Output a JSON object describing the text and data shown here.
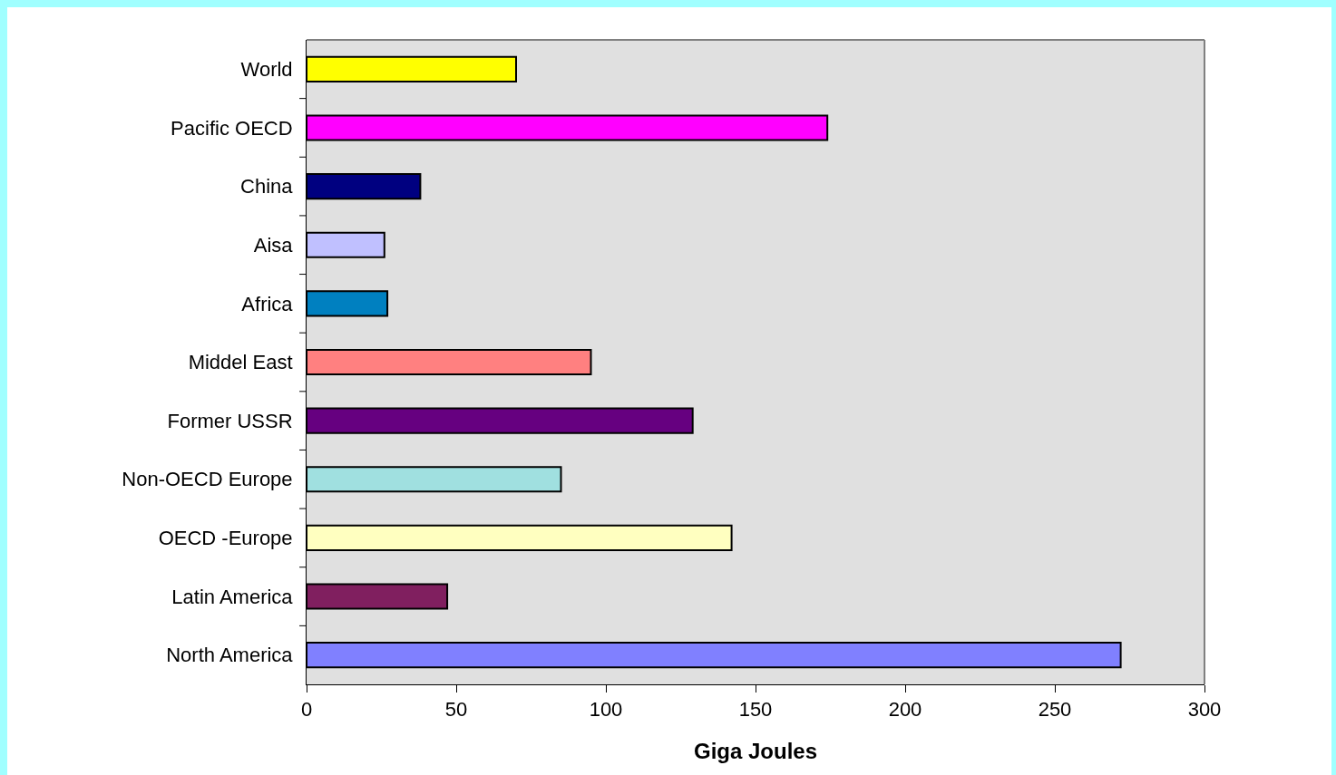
{
  "chart_data": {
    "type": "bar",
    "orientation": "horizontal",
    "xlabel": "Giga Joules",
    "categories": [
      "World",
      "Pacific OECD",
      "China",
      "Aisa",
      "Africa",
      "Middel East",
      "Former USSR",
      "Non-OECD Europe",
      "OECD -Europe",
      "Latin America",
      "North America"
    ],
    "values": [
      70,
      174,
      38,
      26,
      27,
      95,
      129,
      85,
      142,
      47,
      272
    ],
    "colors": [
      "#ffff00",
      "#ff00ff",
      "#000080",
      "#c0c0ff",
      "#0080c0",
      "#ff8080",
      "#660080",
      "#a0e0e0",
      "#ffffc0",
      "#801f5f",
      "#8080ff"
    ],
    "xlim": [
      0,
      300
    ],
    "xticks": [
      0,
      50,
      100,
      150,
      200,
      250,
      300
    ],
    "grid": false
  }
}
